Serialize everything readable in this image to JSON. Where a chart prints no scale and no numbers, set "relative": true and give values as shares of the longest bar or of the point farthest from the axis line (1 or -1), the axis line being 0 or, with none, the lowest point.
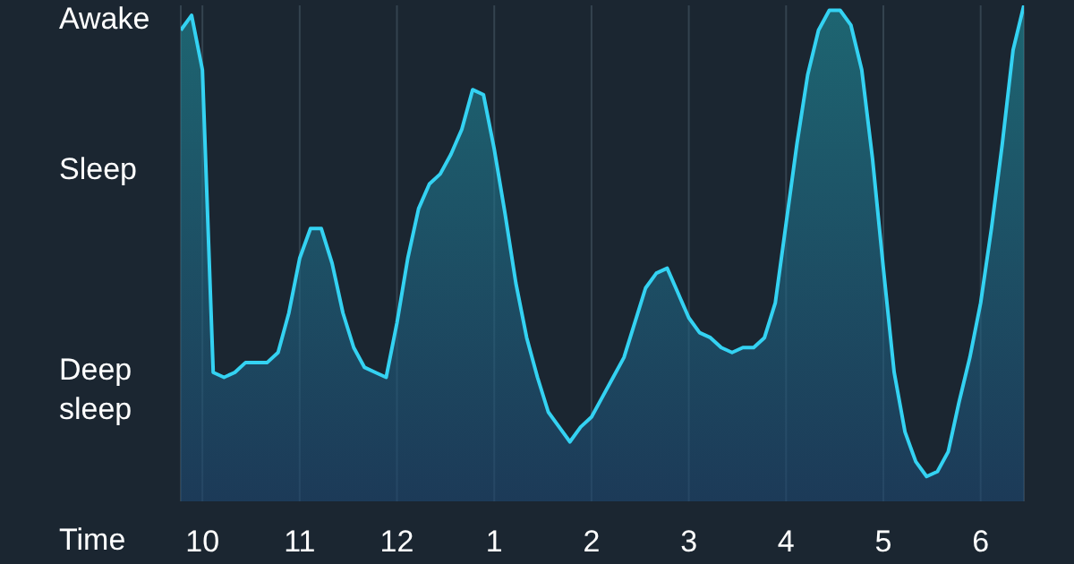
{
  "chart_data": {
    "type": "area",
    "relative": true,
    "xlabel": "Time",
    "color": "#34d2f2",
    "categories": [
      null,
      null,
      "10",
      null,
      null,
      null,
      null,
      null,
      null,
      null,
      null,
      "11",
      null,
      null,
      null,
      null,
      null,
      null,
      null,
      null,
      "12",
      null,
      null,
      null,
      null,
      null,
      null,
      null,
      null,
      "1",
      null,
      null,
      null,
      null,
      null,
      null,
      null,
      null,
      "2",
      null,
      null,
      null,
      null,
      null,
      null,
      null,
      null,
      "3",
      null,
      null,
      null,
      null,
      null,
      null,
      null,
      null,
      "4",
      null,
      null,
      null,
      null,
      null,
      null,
      null,
      null,
      "5",
      null,
      null,
      null,
      null,
      null,
      null,
      null,
      null,
      "6",
      null,
      null,
      null,
      null
    ],
    "values": [
      0.95,
      0.98,
      0.87,
      0.26,
      0.25,
      0.26,
      0.28,
      0.28,
      0.28,
      0.3,
      0.38,
      0.49,
      0.55,
      0.55,
      0.48,
      0.38,
      0.31,
      0.27,
      0.26,
      0.25,
      0.36,
      0.49,
      0.59,
      0.64,
      0.66,
      0.7,
      0.75,
      0.83,
      0.82,
      0.71,
      0.58,
      0.44,
      0.33,
      0.25,
      0.18,
      0.15,
      0.12,
      0.15,
      0.17,
      0.21,
      0.25,
      0.29,
      0.36,
      0.43,
      0.46,
      0.47,
      0.42,
      0.37,
      0.34,
      0.33,
      0.31,
      0.3,
      0.31,
      0.31,
      0.33,
      0.4,
      0.56,
      0.72,
      0.86,
      0.95,
      0.99,
      0.99,
      0.96,
      0.87,
      0.69,
      0.47,
      0.26,
      0.14,
      0.08,
      0.05,
      0.06,
      0.1,
      0.2,
      0.29,
      0.4,
      0.55,
      0.72,
      0.91,
      1
    ],
    "annotations": [
      "Awake",
      "Sleep",
      "Deep sleep"
    ],
    "grid": "x",
    "marker": "none",
    "line_style": "solid"
  }
}
